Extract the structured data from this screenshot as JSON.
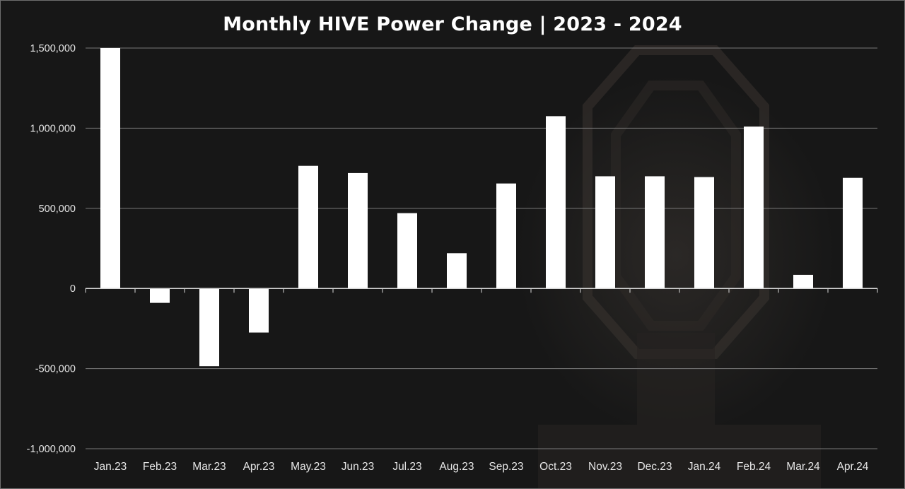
{
  "chart_data": {
    "type": "bar",
    "title": "Monthly HIVE Power Change | 2023 - 2024",
    "xlabel": "",
    "ylabel": "",
    "ylim": [
      -1000000,
      1500000
    ],
    "yticks": [
      1500000,
      1000000,
      500000,
      0,
      -500000,
      -1000000
    ],
    "ytick_labels": [
      "1,500,000",
      "1,000,000",
      "500,000",
      "0",
      "-500,000",
      "-1,000,000"
    ],
    "grid": true,
    "legend": "none",
    "categories": [
      "Jan.23",
      "Feb.23",
      "Mar.23",
      "Apr.23",
      "May.23",
      "Jun.23",
      "Jul.23",
      "Aug.23",
      "Sep.23",
      "Oct.23",
      "Nov.23",
      "Dec.23",
      "Jan.24",
      "Feb.24",
      "Mar.24",
      "Apr.24"
    ],
    "values": [
      1500000,
      -90000,
      -485000,
      -275000,
      765000,
      720000,
      470000,
      220000,
      655000,
      1075000,
      700000,
      700000,
      695000,
      1010000,
      85000,
      690000
    ],
    "bar_color": "#ffffff",
    "grid_color": "#7a7a7a",
    "text_color": "#e6e6e6"
  }
}
